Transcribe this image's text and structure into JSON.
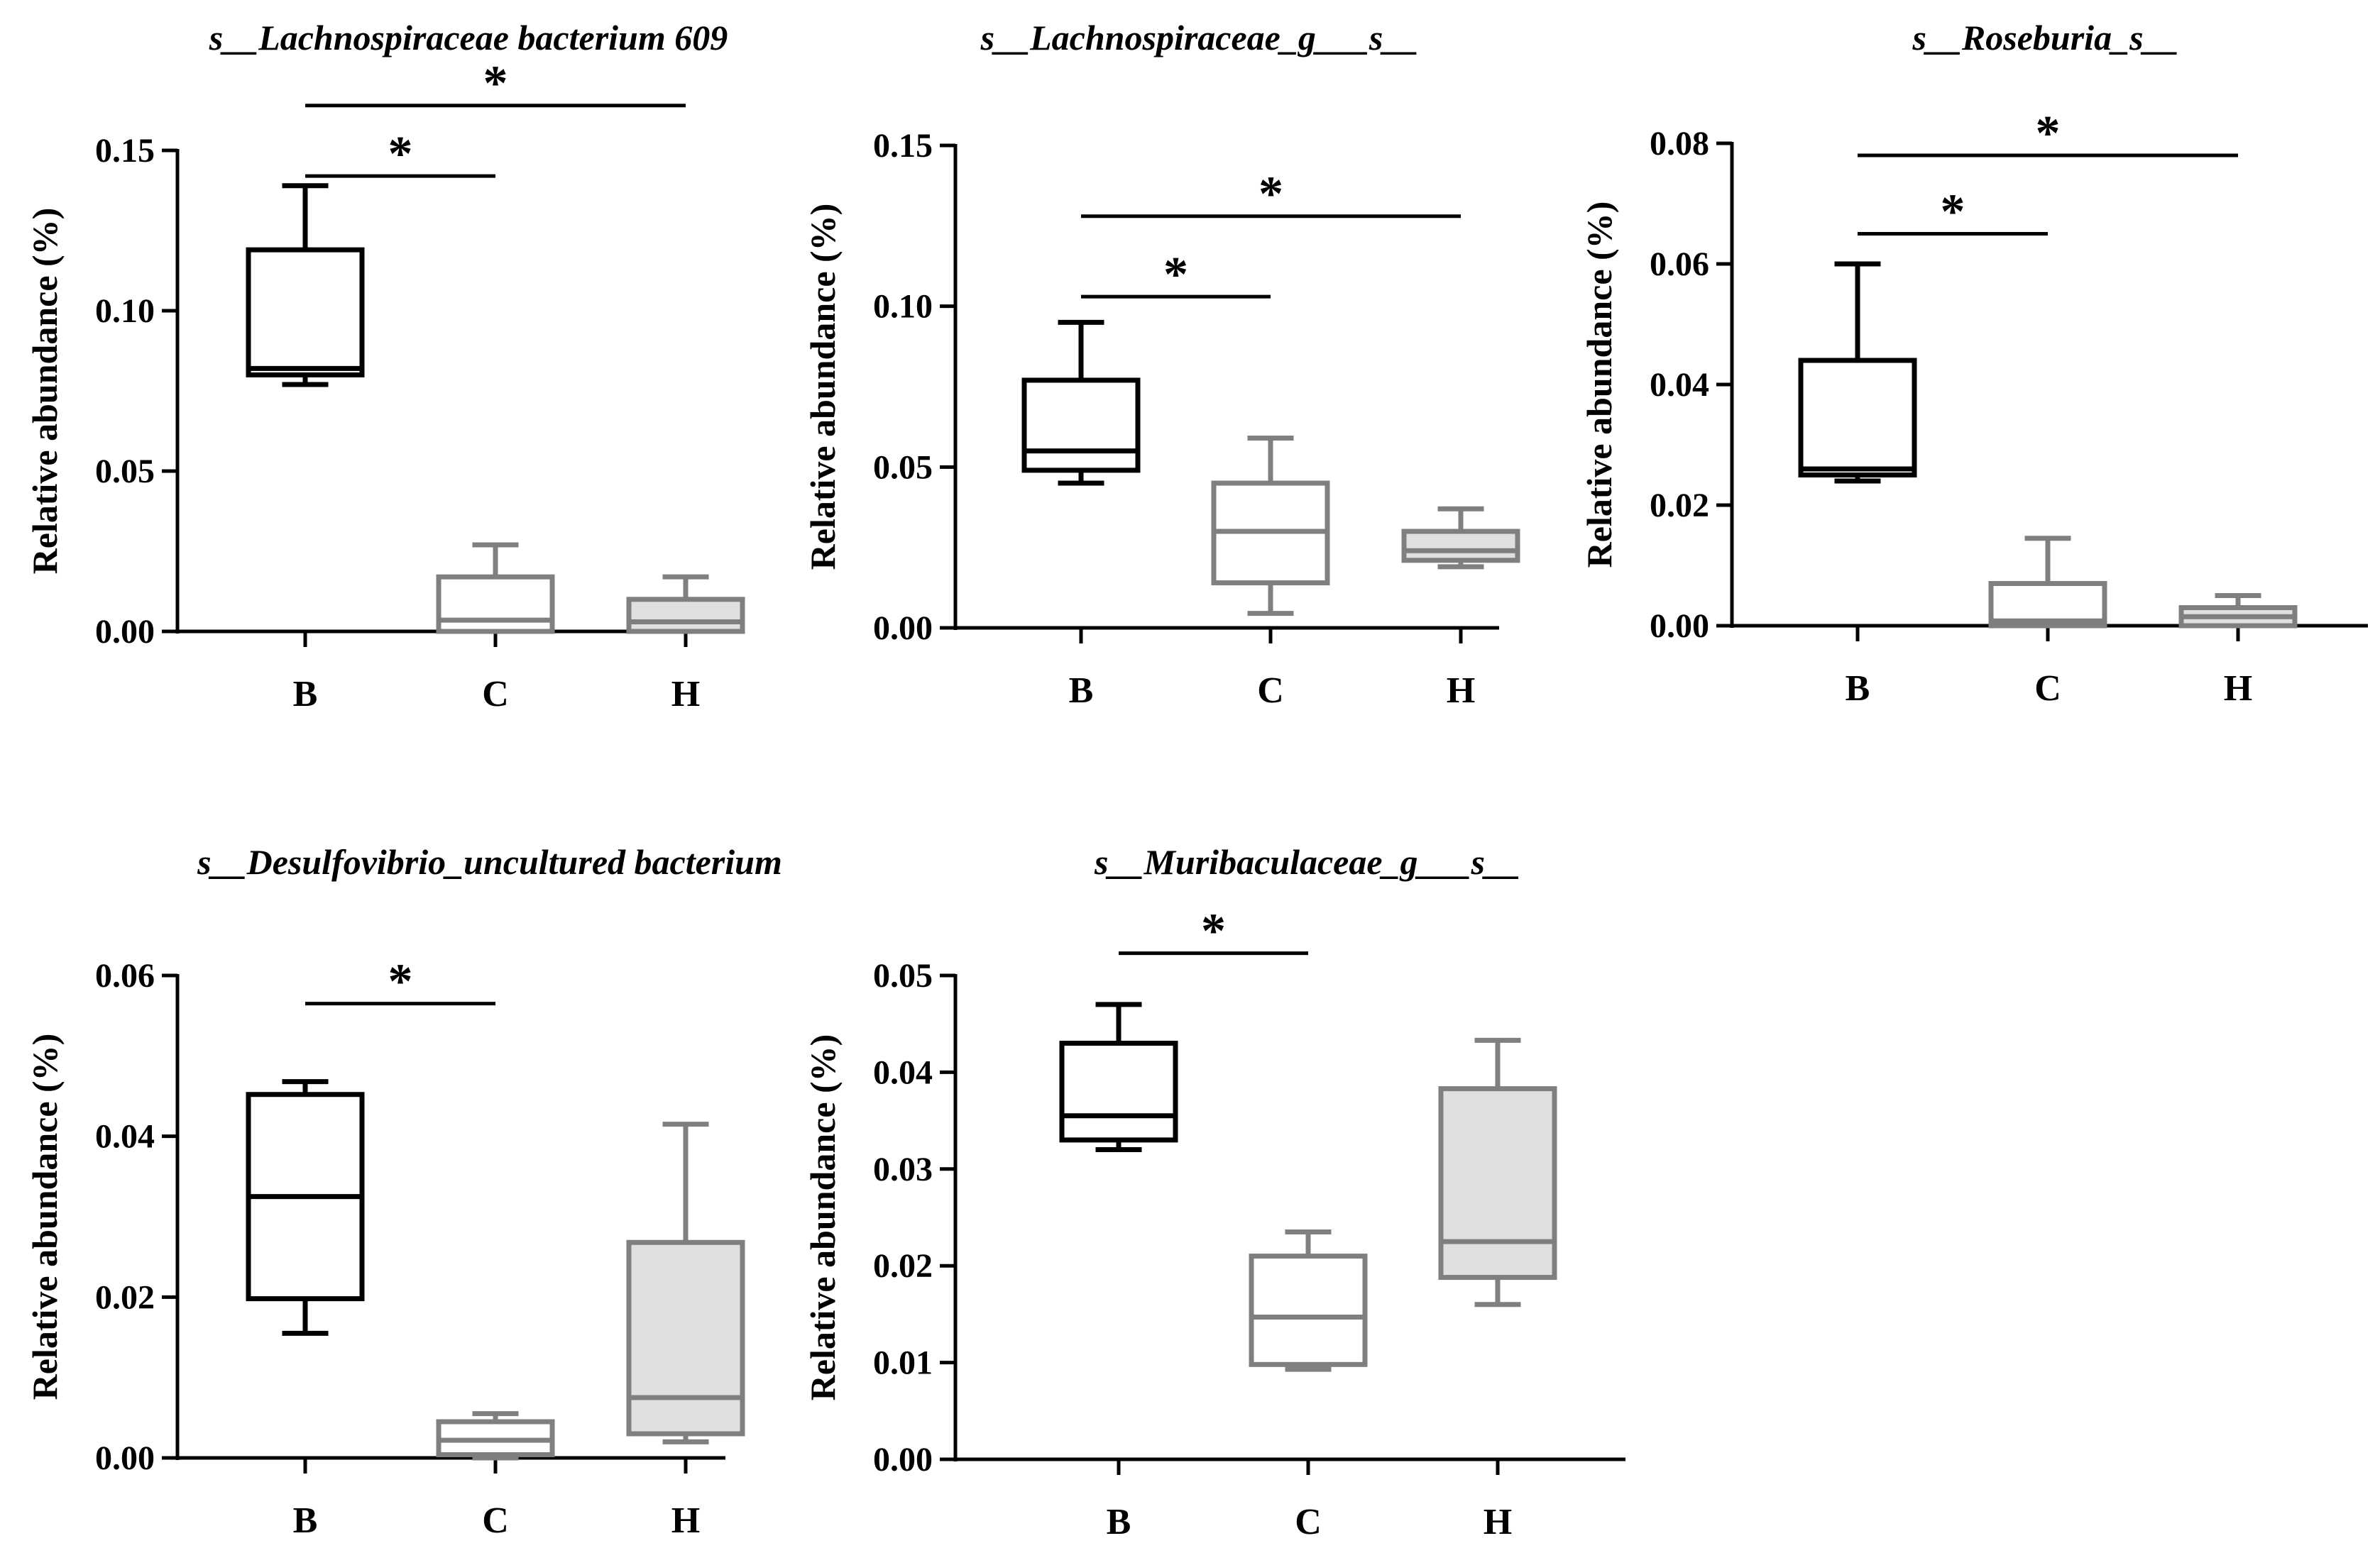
{
  "chart_data": [
    {
      "type": "box",
      "title": "s__Lachnospiraceae bacterium 609",
      "ylabel": "Relative abundance (%)",
      "categories": [
        "B",
        "C",
        "H"
      ],
      "ylim": [
        0,
        0.15
      ],
      "yticks": [
        "0.00",
        "0.05",
        "0.10",
        "0.15"
      ],
      "boxes": [
        {
          "group": "B",
          "min": 0.077,
          "q1": 0.08,
          "median": 0.082,
          "q3": 0.119,
          "max": 0.139
        },
        {
          "group": "C",
          "min": 0.0,
          "q1": 0.0,
          "median": 0.0035,
          "q3": 0.017,
          "max": 0.027
        },
        {
          "group": "H",
          "min": 0.0,
          "q1": 0.0,
          "median": 0.003,
          "q3": 0.01,
          "max": 0.017
        }
      ],
      "significance": [
        {
          "from": "B",
          "to": "C",
          "label": "*",
          "y": 0.142
        },
        {
          "from": "B",
          "to": "H",
          "label": "*",
          "y": 0.164
        }
      ]
    },
    {
      "type": "box",
      "title": "s__Lachnospiraceae_g___s__",
      "ylabel": "Relative abundance (%)",
      "categories": [
        "B",
        "C",
        "H"
      ],
      "ylim": [
        0,
        0.15
      ],
      "yticks": [
        "0.00",
        "0.05",
        "0.10",
        "0.15"
      ],
      "boxes": [
        {
          "group": "B",
          "min": 0.045,
          "q1": 0.049,
          "median": 0.055,
          "q3": 0.077,
          "max": 0.095
        },
        {
          "group": "C",
          "min": 0.0045,
          "q1": 0.014,
          "median": 0.03,
          "q3": 0.045,
          "max": 0.059
        },
        {
          "group": "H",
          "min": 0.019,
          "q1": 0.021,
          "median": 0.024,
          "q3": 0.03,
          "max": 0.037
        }
      ],
      "significance": [
        {
          "from": "B",
          "to": "C",
          "label": "*",
          "y": 0.103
        },
        {
          "from": "B",
          "to": "H",
          "label": "*",
          "y": 0.128
        }
      ]
    },
    {
      "type": "box",
      "title": "s__Roseburia_s__",
      "ylabel": "Relative abundance (%)",
      "categories": [
        "B",
        "C",
        "H"
      ],
      "ylim": [
        0,
        0.08
      ],
      "yticks": [
        "0.00",
        "0.02",
        "0.04",
        "0.06",
        "0.08"
      ],
      "boxes": [
        {
          "group": "B",
          "min": 0.024,
          "q1": 0.025,
          "median": 0.026,
          "q3": 0.044,
          "max": 0.06
        },
        {
          "group": "C",
          "min": 0.0,
          "q1": 0.0,
          "median": 0.0008,
          "q3": 0.007,
          "max": 0.0145
        },
        {
          "group": "H",
          "min": 0.0,
          "q1": 0.0,
          "median": 0.0015,
          "q3": 0.003,
          "max": 0.005
        }
      ],
      "significance": [
        {
          "from": "B",
          "to": "C",
          "label": "*",
          "y": 0.065
        },
        {
          "from": "B",
          "to": "H",
          "label": "*",
          "y": 0.078
        }
      ]
    },
    {
      "type": "box",
      "title": "s__Desulfovibrio_uncultured bacterium",
      "ylabel": "Relative abundance (%)",
      "categories": [
        "B",
        "C",
        "H"
      ],
      "ylim": [
        0,
        0.06
      ],
      "yticks": [
        "0.00",
        "0.02",
        "0.04",
        "0.06"
      ],
      "boxes": [
        {
          "group": "B",
          "min": 0.0155,
          "q1": 0.0198,
          "median": 0.0325,
          "q3": 0.0452,
          "max": 0.0468
        },
        {
          "group": "C",
          "min": 0.0,
          "q1": 0.0004,
          "median": 0.0022,
          "q3": 0.0045,
          "max": 0.0055
        },
        {
          "group": "H",
          "min": 0.002,
          "q1": 0.003,
          "median": 0.0075,
          "q3": 0.0268,
          "max": 0.0415
        }
      ],
      "significance": [
        {
          "from": "B",
          "to": "C",
          "label": "*",
          "y": 0.0565
        }
      ]
    },
    {
      "type": "box",
      "title": "s__Muribaculaceae_g___s__",
      "ylabel": "Relative abundance (%)",
      "categories": [
        "B",
        "C",
        "H"
      ],
      "ylim": [
        0,
        0.05
      ],
      "yticks": [
        "0.00",
        "0.01",
        "0.02",
        "0.03",
        "0.04",
        "0.05"
      ],
      "boxes": [
        {
          "group": "B",
          "min": 0.032,
          "q1": 0.033,
          "median": 0.0355,
          "q3": 0.043,
          "max": 0.047
        },
        {
          "group": "C",
          "min": 0.0093,
          "q1": 0.0098,
          "median": 0.0147,
          "q3": 0.021,
          "max": 0.0235
        },
        {
          "group": "H",
          "min": 0.016,
          "q1": 0.0188,
          "median": 0.0225,
          "q3": 0.0383,
          "max": 0.0433
        }
      ],
      "significance": [
        {
          "from": "B",
          "to": "C",
          "label": "*",
          "y": 0.0523
        }
      ]
    }
  ],
  "colors": {
    "B": {
      "stroke": "#000000",
      "fill": "#ffffff"
    },
    "C": {
      "stroke": "#7f7f7f",
      "fill": "#ffffff"
    },
    "H": {
      "stroke": "#7f7f7f",
      "fill": "#e0e0e0"
    },
    "axis": "#000000"
  }
}
